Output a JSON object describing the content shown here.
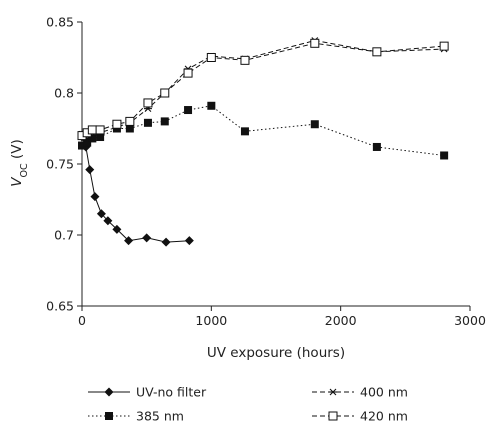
{
  "chart_data": {
    "type": "line",
    "xlabel": "UV exposure (hours)",
    "ylabel_main": "V",
    "ylabel_sub": "OC",
    "ylabel_unit": " (V)",
    "xlim": [
      0,
      3000
    ],
    "ylim": [
      0.65,
      0.85
    ],
    "xticks": [
      0,
      1000,
      2000,
      3000
    ],
    "xtick_labels": [
      "0",
      "1000",
      "2000",
      "3000"
    ],
    "yticks": [
      0.65,
      0.7,
      0.75,
      0.8,
      0.85
    ],
    "ytick_labels": [
      "0.65",
      "0.7",
      "0.75",
      "0.8",
      "0.85"
    ],
    "grid": false,
    "legend_position": "bottom",
    "series": [
      {
        "name": "UV-no filter",
        "marker": "diamond",
        "line": "solid",
        "x": [
          0,
          30,
          60,
          100,
          150,
          200,
          270,
          360,
          500,
          650,
          830
        ],
        "y": [
          0.769,
          0.762,
          0.746,
          0.727,
          0.715,
          0.71,
          0.704,
          0.696,
          0.698,
          0.695,
          0.696
        ]
      },
      {
        "name": "385 nm",
        "marker": "filled-square",
        "line": "dotted",
        "x": [
          0,
          40,
          80,
          140,
          270,
          370,
          510,
          640,
          820,
          1000,
          1260,
          1800,
          2280,
          2800
        ],
        "y": [
          0.763,
          0.765,
          0.768,
          0.769,
          0.775,
          0.775,
          0.779,
          0.78,
          0.788,
          0.791,
          0.773,
          0.778,
          0.762,
          0.756
        ]
      },
      {
        "name": "400 nm",
        "marker": "asterisk",
        "line": "dashed",
        "x": [
          0,
          40,
          80,
          140,
          270,
          370,
          510,
          640,
          820,
          1000,
          1260,
          1800,
          2280,
          2800
        ],
        "y": [
          0.771,
          0.768,
          0.77,
          0.772,
          0.776,
          0.779,
          0.789,
          0.8,
          0.817,
          0.826,
          0.824,
          0.837,
          0.829,
          0.831
        ]
      },
      {
        "name": "420 nm",
        "marker": "open-square",
        "line": "dashed",
        "x": [
          0,
          40,
          80,
          140,
          270,
          370,
          510,
          640,
          820,
          1000,
          1260,
          1800,
          2280,
          2800
        ],
        "y": [
          0.77,
          0.772,
          0.774,
          0.774,
          0.778,
          0.78,
          0.793,
          0.8,
          0.814,
          0.825,
          0.823,
          0.835,
          0.829,
          0.833
        ]
      }
    ]
  }
}
